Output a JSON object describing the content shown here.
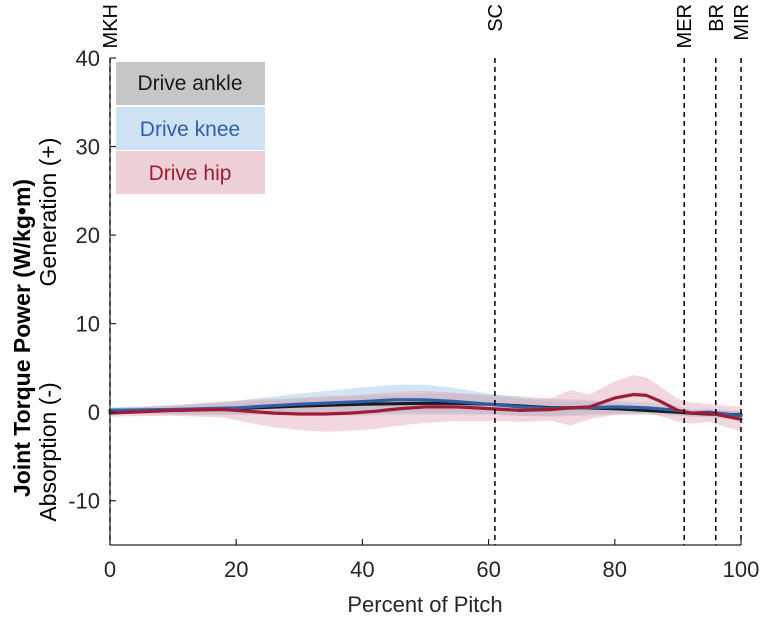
{
  "chart_data": {
    "type": "line",
    "title": "",
    "xlabel": "Percent of Pitch",
    "ylabel_lines": [
      "Joint Torque Power (W/kg•m)",
      "Absorption (-)",
      "Generation (+)"
    ],
    "xlim": [
      0,
      100
    ],
    "ylim": [
      -15,
      40
    ],
    "x_ticks": [
      0,
      20,
      40,
      60,
      80,
      100
    ],
    "y_ticks": [
      -10,
      0,
      10,
      20,
      30,
      40
    ],
    "grid": false,
    "legend_position": "top-left",
    "event_markers": [
      {
        "label": "MKH",
        "x": 0
      },
      {
        "label": "SC",
        "x": 61
      },
      {
        "label": "MER",
        "x": 91
      },
      {
        "label": "BR",
        "x": 96
      },
      {
        "label": "MIR",
        "x": 100
      }
    ],
    "series": [
      {
        "name": "Drive ankle",
        "color": "#1a1a1a",
        "band_color": "#b3b3b3",
        "x": [
          0,
          10,
          20,
          30,
          40,
          50,
          55,
          60,
          65,
          70,
          75,
          80,
          85,
          90,
          92,
          95,
          100
        ],
        "mean": [
          0.2,
          0.2,
          0.4,
          0.7,
          0.9,
          1.0,
          1.0,
          0.9,
          0.7,
          0.5,
          0.5,
          0.4,
          0.2,
          0.0,
          -0.1,
          -0.2,
          -0.3
        ],
        "sd": [
          0.3,
          0.5,
          0.7,
          0.9,
          1.0,
          1.1,
          1.1,
          1.1,
          1.1,
          1.0,
          0.9,
          0.7,
          0.5,
          0.4,
          0.4,
          0.4,
          0.4
        ]
      },
      {
        "name": "Drive knee",
        "color": "#2e5fa8",
        "band_color": "#9ec3e6",
        "x": [
          0,
          10,
          20,
          30,
          40,
          45,
          50,
          55,
          60,
          65,
          70,
          75,
          80,
          85,
          90,
          92,
          95,
          100
        ],
        "mean": [
          0.2,
          0.3,
          0.5,
          0.9,
          1.2,
          1.4,
          1.4,
          1.2,
          0.9,
          0.6,
          0.4,
          0.5,
          0.6,
          0.5,
          0.2,
          -0.1,
          0.0,
          -0.4
        ],
        "sd": [
          0.3,
          0.5,
          0.8,
          1.2,
          1.6,
          1.7,
          1.7,
          1.5,
          1.2,
          1.0,
          0.8,
          0.7,
          0.7,
          0.6,
          0.5,
          0.4,
          0.4,
          0.5
        ]
      },
      {
        "name": "Drive hip",
        "color": "#a01c35",
        "band_color": "#e3a9b6",
        "x": [
          0,
          10,
          18,
          22,
          26,
          30,
          34,
          38,
          42,
          46,
          50,
          55,
          60,
          65,
          70,
          73,
          76,
          80,
          83,
          85,
          87,
          90,
          92,
          95,
          100
        ],
        "mean": [
          -0.1,
          0.2,
          0.3,
          0.1,
          -0.1,
          -0.2,
          -0.2,
          -0.1,
          0.1,
          0.4,
          0.6,
          0.6,
          0.4,
          0.2,
          0.3,
          0.5,
          0.6,
          1.6,
          2.0,
          1.9,
          1.3,
          0.2,
          -0.1,
          -0.1,
          -0.8
        ],
        "sd": [
          0.4,
          0.6,
          0.9,
          1.3,
          1.6,
          1.8,
          2.0,
          2.0,
          2.0,
          1.9,
          1.8,
          1.6,
          1.4,
          1.3,
          1.3,
          2.0,
          1.4,
          1.9,
          2.2,
          2.0,
          1.7,
          1.3,
          1.2,
          1.0,
          1.4
        ]
      }
    ]
  }
}
